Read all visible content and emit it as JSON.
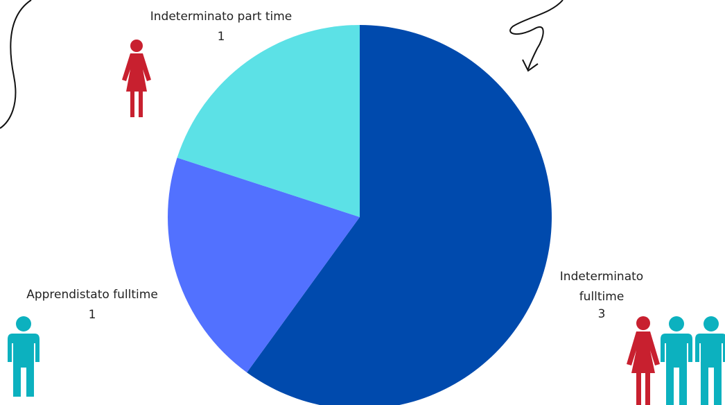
{
  "chart_data": {
    "type": "pie",
    "categories": [
      "Indeterminato fulltime",
      "Apprendistato fulltime",
      "Indeterminato part time"
    ],
    "values": [
      3,
      1,
      1
    ],
    "colors": [
      "#004aad",
      "#5271ff",
      "#5ce1e6"
    ]
  }
}
